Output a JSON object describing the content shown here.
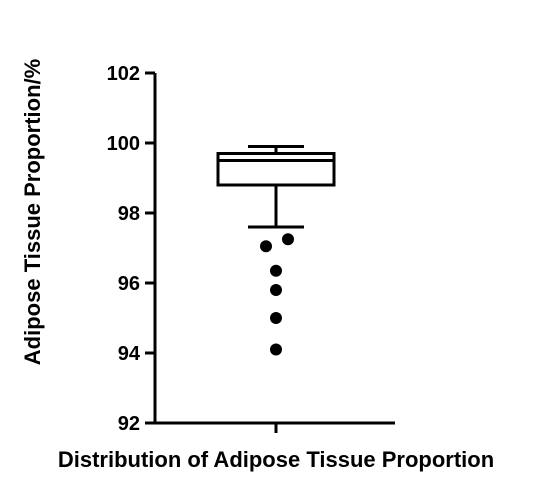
{
  "chart_data": {
    "type": "box",
    "xlabel": "Distribution of Adipose Tissue Proportion",
    "ylabel": "Adipose Tissue Proportion/%",
    "ylim": [
      92,
      102
    ],
    "yticks": [
      92,
      94,
      96,
      98,
      100,
      102
    ],
    "ytick_labels": [
      "92",
      "94",
      "96",
      "98",
      "100",
      "102"
    ],
    "grid": false,
    "box": {
      "whisker_low": 97.6,
      "q1": 98.8,
      "median": 99.5,
      "q3": 99.7,
      "whisker_high": 99.9
    },
    "outliers": [
      97.25,
      97.05,
      96.35,
      95.8,
      95.0,
      94.1
    ]
  }
}
